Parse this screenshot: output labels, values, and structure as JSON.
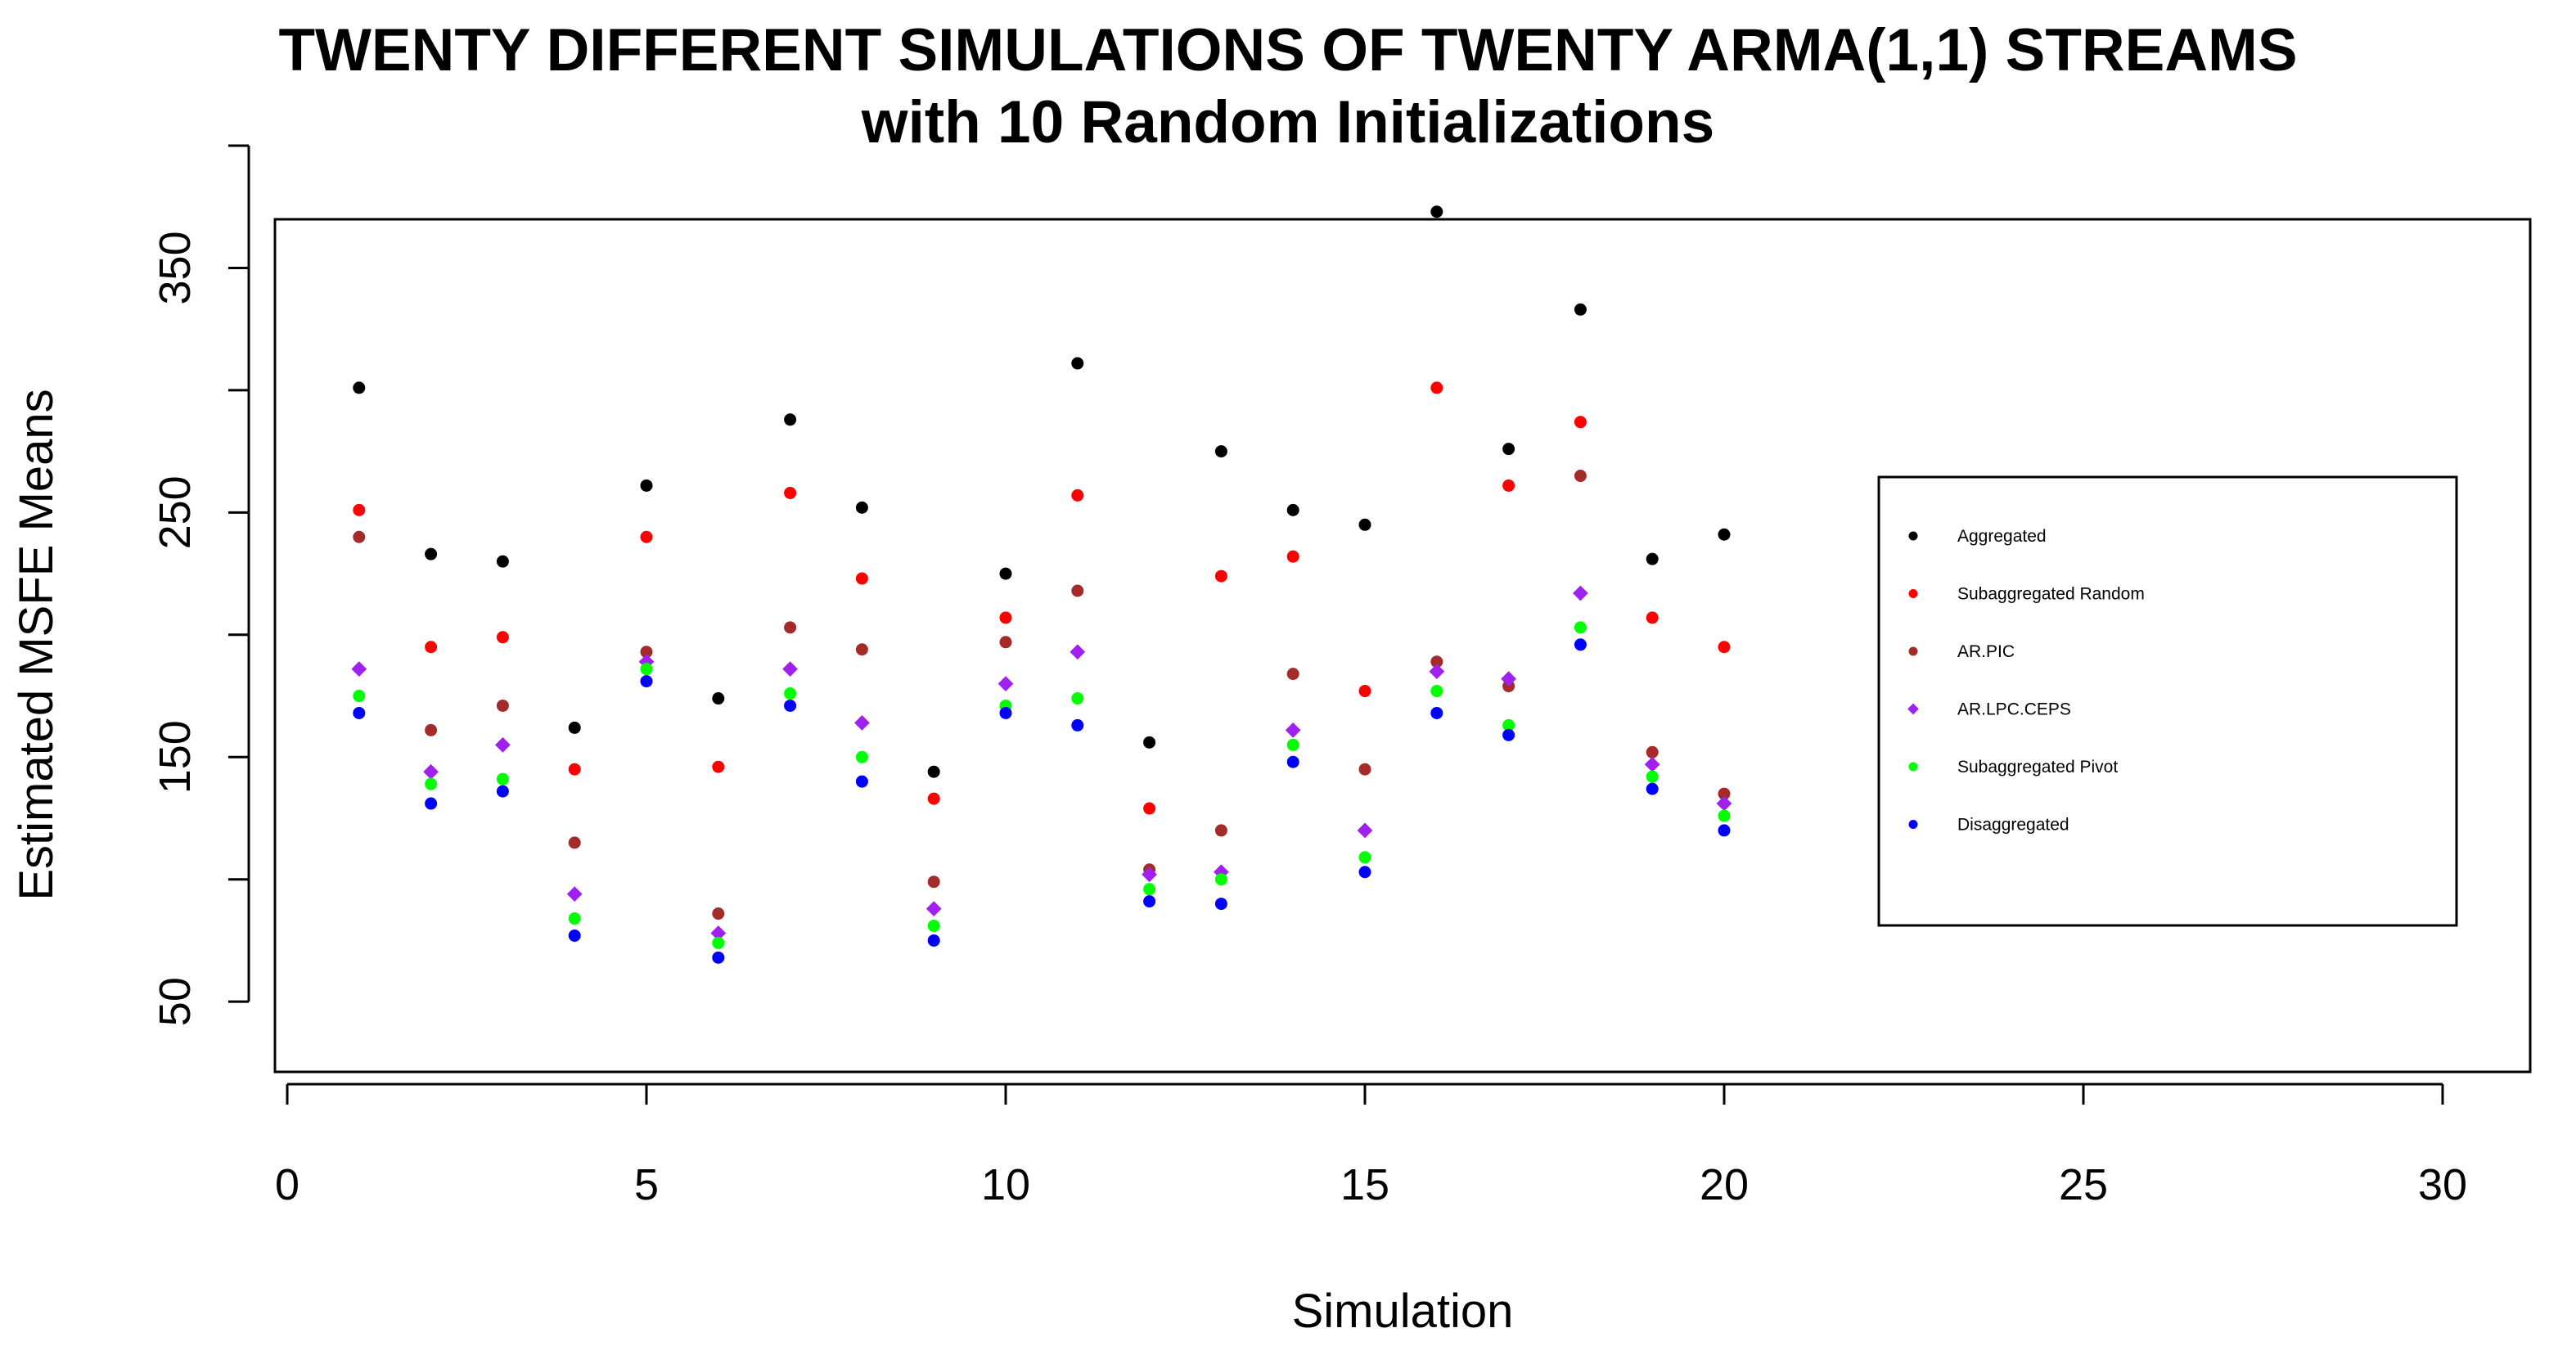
{
  "chart_data": {
    "type": "scatter",
    "title": "TWENTY DIFFERENT SIMULATIONS OF TWENTY ARMA(1,1) STREAMS",
    "subtitle": "with 10 Random Initializations",
    "xlabel": "Simulation",
    "ylabel": "Estimated  MSFE Means",
    "xlim": [
      0,
      30
    ],
    "ylim": [
      35,
      400
    ],
    "x_ticks": [
      0,
      5,
      10,
      15,
      20,
      25,
      30
    ],
    "y_ticks": [
      50,
      150,
      250,
      350
    ],
    "grid": false,
    "legend_position": "right",
    "x": [
      1,
      2,
      3,
      4,
      5,
      6,
      7,
      8,
      9,
      10,
      11,
      12,
      13,
      14,
      15,
      16,
      17,
      18,
      19,
      20
    ],
    "series": [
      {
        "name": "Aggregated",
        "color": "#000000",
        "marker": "circle",
        "values": [
          301,
          233,
          230,
          162,
          261,
          174,
          288,
          252,
          144,
          225,
          311,
          156,
          275,
          251,
          245,
          373,
          276,
          333,
          231,
          241
        ]
      },
      {
        "name": "Subaggregated Random",
        "color": "#ff0000",
        "marker": "circle",
        "values": [
          251,
          195,
          199,
          145,
          240,
          146,
          258,
          223,
          133,
          207,
          257,
          129,
          224,
          232,
          177,
          301,
          261,
          287,
          207,
          195
        ]
      },
      {
        "name": "AR.PIC",
        "color": "#a52a2a",
        "marker": "circle",
        "values": [
          240,
          161,
          171,
          115,
          193,
          86,
          203,
          194,
          99,
          197,
          218,
          104,
          120,
          184,
          145,
          189,
          179,
          265,
          152,
          135
        ]
      },
      {
        "name": "AR.LPC.CEPS",
        "color": "#a020f0",
        "marker": "diamond",
        "values": [
          186,
          144,
          155,
          94,
          189,
          78,
          186,
          164,
          88,
          180,
          193,
          102,
          103,
          161,
          120,
          185,
          182,
          217,
          147,
          131
        ]
      },
      {
        "name": "Subaggregated Pivot",
        "color": "#00ff00",
        "marker": "circle",
        "values": [
          175,
          139,
          141,
          84,
          186,
          74,
          176,
          150,
          81,
          171,
          174,
          96,
          100,
          155,
          109,
          177,
          163,
          203,
          142,
          126
        ]
      },
      {
        "name": "Disaggregated",
        "color": "#0000ff",
        "marker": "circle",
        "values": [
          168,
          131,
          136,
          77,
          181,
          68,
          171,
          140,
          75,
          168,
          163,
          91,
          90,
          148,
          103,
          168,
          159,
          196,
          137,
          120
        ]
      }
    ]
  }
}
